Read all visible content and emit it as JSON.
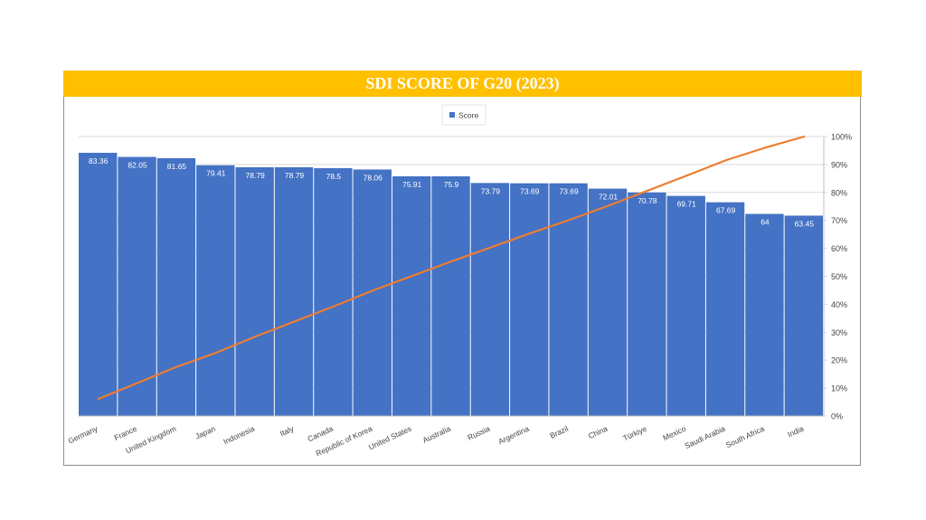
{
  "title": "SDI SCORE OF G20 (2023)",
  "colors": {
    "title_bg": "#ffc000",
    "title_text": "#ffffff",
    "bar": "#4472c4",
    "bar_label": "#ffffff",
    "line": "#ed7d31",
    "axis_text": "#444444",
    "grid": "#d9d9d9"
  },
  "chart_data": {
    "type": "bar",
    "title": "SDI SCORE OF G20 (2023)",
    "categories": [
      "Germany",
      "France",
      "United Kingdom",
      "Japan",
      "Indonesia",
      "Italy",
      "Canada",
      "Republic of Korea",
      "United States",
      "Australia",
      "Russia",
      "Argentina",
      "Brazil",
      "China",
      "Türkiye",
      "Mexico",
      "Saudi Arabia",
      "South Africa",
      "India"
    ],
    "series": [
      {
        "name": "Score",
        "type": "bar",
        "axis": "left",
        "values": [
          83.36,
          82.05,
          81.65,
          79.41,
          78.79,
          78.79,
          78.5,
          78.06,
          75.91,
          75.9,
          73.79,
          73.69,
          73.69,
          72.01,
          70.78,
          69.71,
          67.69,
          64,
          63.45
        ],
        "labels": [
          "83.36",
          "82.05",
          "81.65",
          "79.41",
          "78.79",
          "78.79",
          "78.5",
          "78.06",
          "75.91",
          "75.9",
          "73.79",
          "73.69",
          "73.69",
          "72.01",
          "70.78",
          "69.71",
          "67.69",
          "64",
          "63.45"
        ]
      },
      {
        "type": "line",
        "axis": "right",
        "values": [
          6.1,
          11.8,
          17.6,
          22.6,
          28.4,
          33.8,
          39.2,
          44.9,
          50.1,
          55.3,
          60.3,
          65.3,
          70.1,
          75.2,
          80.6,
          86.0,
          91.5,
          96.0,
          100.0
        ]
      }
    ],
    "y2_ticks": [
      "0%",
      "10%",
      "20%",
      "30%",
      "40%",
      "50%",
      "60%",
      "70%",
      "80%",
      "90%",
      "100%"
    ],
    "y2lim": [
      0,
      100
    ],
    "ylim": [
      0,
      100
    ],
    "legend": "top-center",
    "grid": true
  }
}
